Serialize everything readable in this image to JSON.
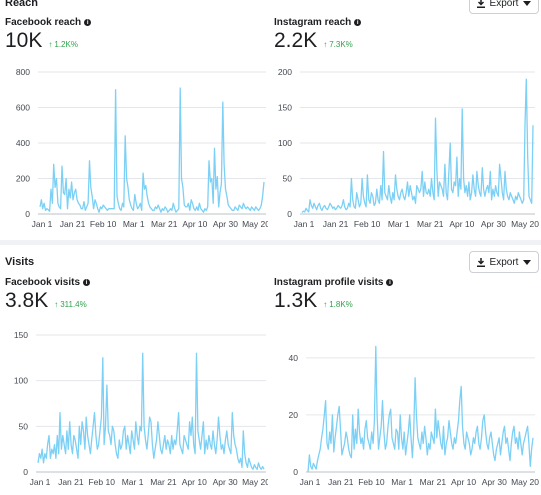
{
  "reach": {
    "title": "Reach",
    "export_label": "Export",
    "facebook": {
      "label": "Facebook reach",
      "value": "10K",
      "change": "1.2K%",
      "chart_data": {
        "type": "line",
        "x_tick_labels": [
          "Jan 1",
          "Jan 21",
          "Feb 10",
          "Mar 1",
          "Mar 21",
          "Apr 10",
          "Apr 30",
          "May 20"
        ],
        "y_ticks": [
          0,
          200,
          400,
          600,
          800
        ],
        "ylim": [
          0,
          800
        ],
        "color": "#7cd0f5",
        "values": [
          40,
          80,
          30,
          60,
          20,
          30,
          25,
          15,
          140,
          60,
          280,
          150,
          200,
          60,
          40,
          30,
          270,
          120,
          110,
          200,
          30,
          140,
          90,
          180,
          80,
          120,
          140,
          80,
          60,
          50,
          30,
          30,
          70,
          20,
          40,
          60,
          300,
          150,
          100,
          30,
          80,
          60,
          30,
          10,
          40,
          30,
          50,
          40,
          30,
          20,
          30,
          30,
          30,
          30,
          30,
          700,
          100,
          60,
          30,
          20,
          60,
          40,
          440,
          200,
          150,
          80,
          50,
          30,
          20,
          110,
          60,
          30,
          40,
          60,
          20,
          230,
          140,
          160,
          100,
          60,
          40,
          30,
          20,
          20,
          40,
          30,
          50,
          30,
          10,
          30,
          20,
          40,
          30,
          10,
          20,
          30,
          20,
          60,
          30,
          10,
          20,
          30,
          710,
          200,
          150,
          50,
          40,
          40,
          60,
          20,
          80,
          60,
          30,
          20,
          40,
          20,
          60,
          30,
          20,
          10,
          30,
          20,
          40,
          300,
          180,
          200,
          60,
          370,
          140,
          210,
          40,
          120,
          170,
          630,
          280,
          140,
          100,
          50,
          40,
          30,
          20,
          20,
          40,
          30,
          20,
          50,
          40,
          30,
          60,
          40,
          30,
          40,
          30,
          20,
          40,
          30,
          20,
          40,
          30,
          20,
          30,
          50,
          100,
          180
        ]
      }
    },
    "instagram": {
      "label": "Instagram reach",
      "value": "2.2K",
      "change": "7.3K%",
      "chart_data": {
        "type": "line",
        "x_tick_labels": [
          "Jan 1",
          "Jan 21",
          "Feb 10",
          "Mar 1",
          "Mar 21",
          "Apr 10",
          "Apr 30",
          "May 20"
        ],
        "y_ticks": [
          0,
          50,
          100,
          150,
          200
        ],
        "ylim": [
          0,
          200
        ],
        "color": "#7cd0f5",
        "values": [
          2,
          4,
          3,
          8,
          5,
          3,
          20,
          12,
          8,
          15,
          10,
          6,
          12,
          15,
          8,
          5,
          10,
          12,
          8,
          6,
          10,
          15,
          12,
          8,
          10,
          6,
          8,
          12,
          10,
          8,
          12,
          20,
          10,
          6,
          8,
          15,
          10,
          50,
          20,
          10,
          8,
          30,
          20,
          10,
          15,
          50,
          25,
          15,
          10,
          55,
          20,
          15,
          30,
          25,
          12,
          15,
          35,
          20,
          15,
          40,
          20,
          88,
          30,
          25,
          20,
          40,
          25,
          15,
          30,
          20,
          55,
          35,
          25,
          20,
          30,
          35,
          25,
          20,
          30,
          45,
          25,
          40,
          30,
          20,
          25,
          15,
          40,
          35,
          30,
          35,
          60,
          25,
          45,
          30,
          28,
          35,
          25,
          50,
          30,
          20,
          135,
          60,
          25,
          45,
          40,
          35,
          25,
          70,
          30,
          20,
          60,
          100,
          35,
          30,
          45,
          40,
          80,
          25,
          50,
          35,
          148,
          50,
          30,
          40,
          25,
          45,
          20,
          30,
          55,
          35,
          25,
          60,
          40,
          30,
          25,
          65,
          35,
          25,
          35,
          40,
          30,
          60,
          20,
          35,
          25,
          40,
          30,
          25,
          70,
          50,
          30,
          20,
          60,
          35,
          25,
          20,
          30,
          25,
          20,
          15,
          25,
          20,
          30,
          25,
          20,
          15,
          20,
          125,
          190,
          80,
          25,
          20,
          15,
          125
        ]
      }
    }
  },
  "visits": {
    "title": "Visits",
    "export_label": "Export",
    "facebook": {
      "label": "Facebook visits",
      "value": "3.8K",
      "change": "311.4%",
      "chart_data": {
        "type": "line",
        "x_tick_labels": [
          "Jan 1",
          "Jan 21",
          "Feb 10",
          "Mar 1",
          "Mar 21",
          "Apr 10",
          "Apr 30",
          "May 20"
        ],
        "y_ticks": [
          0,
          50,
          100,
          150
        ],
        "ylim": [
          0,
          150
        ],
        "color": "#7cd0f5",
        "values": [
          10,
          20,
          15,
          25,
          10,
          20,
          15,
          30,
          40,
          15,
          25,
          20,
          30,
          15,
          40,
          20,
          65,
          25,
          40,
          30,
          20,
          45,
          25,
          55,
          30,
          20,
          40,
          35,
          25,
          15,
          50,
          30,
          55,
          45,
          25,
          60,
          40,
          30,
          20,
          35,
          50,
          65,
          40,
          25,
          30,
          45,
          60,
          125,
          30,
          50,
          95,
          45,
          40,
          30,
          50,
          45,
          30,
          20,
          15,
          35,
          25,
          30,
          45,
          50,
          25,
          40,
          30,
          20,
          45,
          35,
          25,
          55,
          40,
          30,
          50,
          45,
          130,
          50,
          35,
          25,
          40,
          60,
          55,
          30,
          15,
          25,
          35,
          55,
          40,
          25,
          20,
          30,
          40,
          25,
          35,
          30,
          20,
          40,
          25,
          35,
          30,
          45,
          65,
          30,
          25,
          20,
          40,
          35,
          30,
          25,
          55,
          40,
          60,
          30,
          20,
          130,
          45,
          35,
          25,
          40,
          55,
          20,
          35,
          25,
          40,
          30,
          25,
          45,
          30,
          20,
          35,
          60,
          40,
          25,
          30,
          20,
          35,
          45,
          30,
          25,
          20,
          65,
          40,
          30,
          25,
          15,
          10,
          15,
          5,
          45,
          20,
          10,
          5,
          15,
          10,
          5,
          3,
          8,
          5,
          3,
          10,
          5,
          3,
          6,
          3
        ]
      }
    },
    "instagram": {
      "label": "Instagram profile visits",
      "value": "1.3K",
      "change": "1.8K%",
      "chart_data": {
        "type": "line",
        "x_tick_labels": [
          "Jan 1",
          "Jan 21",
          "Feb 10",
          "Mar 1",
          "Mar 21",
          "Apr 10",
          "Apr 30",
          "May 20"
        ],
        "y_ticks": [
          0,
          20,
          40
        ],
        "ylim": [
          0,
          48
        ],
        "color": "#7cd0f5",
        "values": [
          0,
          6,
          2,
          1,
          3,
          2,
          1,
          4,
          6,
          8,
          12,
          15,
          20,
          25,
          10,
          8,
          14,
          10,
          20,
          7,
          12,
          16,
          20,
          23,
          15,
          6,
          8,
          10,
          14,
          12,
          8,
          6,
          5,
          20,
          8,
          15,
          10,
          22,
          14,
          10,
          12,
          8,
          15,
          18,
          12,
          10,
          8,
          14,
          10,
          18,
          44,
          20,
          8,
          12,
          16,
          25,
          14,
          8,
          10,
          16,
          20,
          22,
          12,
          10,
          8,
          15,
          14,
          8,
          20,
          12,
          8,
          14,
          6,
          10,
          14,
          20,
          12,
          5,
          14,
          33,
          20,
          12,
          10,
          8,
          14,
          10,
          16,
          12,
          6,
          10,
          8,
          14,
          12,
          10,
          22,
          12,
          18,
          14,
          10,
          8,
          16,
          6,
          10,
          12,
          18,
          14,
          10,
          8,
          12,
          10,
          14,
          18,
          25,
          30,
          16,
          10,
          8,
          14,
          12,
          10,
          6,
          8,
          12,
          10,
          14,
          16,
          10,
          8,
          12,
          18,
          20,
          14,
          10,
          8,
          12,
          14,
          10,
          6,
          4,
          8,
          10,
          12,
          6,
          10,
          14,
          16,
          10,
          12,
          8,
          4,
          10,
          14,
          16,
          10,
          12,
          8,
          14,
          10,
          6,
          10,
          12,
          14,
          16,
          10,
          2,
          8,
          12
        ]
      }
    }
  }
}
